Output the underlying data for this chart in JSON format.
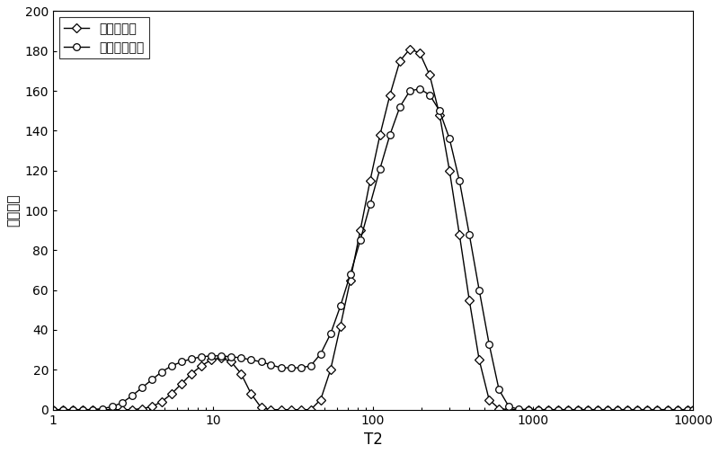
{
  "title": "",
  "xlabel": "T2",
  "ylabel": "信号强度",
  "xlim_log": [
    1,
    10000
  ],
  "ylim": [
    0,
    200
  ],
  "yticks": [
    0,
    20,
    40,
    60,
    80,
    100,
    120,
    140,
    160,
    180,
    200
  ],
  "xticks": [
    1,
    10,
    100,
    1000,
    10000
  ],
  "xtick_labels": [
    "1",
    "10",
    "100",
    "1000",
    "10000"
  ],
  "legend1": "饱和油状态",
  "legend2": "油水共存状态",
  "line_color": "#000000",
  "background_color": "#ffffff",
  "figsize": [
    8.0,
    5.05
  ],
  "dpi": 100,
  "curve1_x": [
    1.0,
    1.15,
    1.33,
    1.53,
    1.77,
    2.04,
    2.35,
    2.71,
    3.13,
    3.6,
    4.15,
    4.79,
    5.52,
    6.37,
    7.34,
    8.46,
    9.77,
    11.3,
    13.0,
    15.0,
    17.3,
    20.0,
    23.0,
    26.6,
    30.7,
    35.4,
    40.8,
    47.1,
    54.3,
    62.6,
    72.2,
    83.3,
    96.0,
    110.7,
    127.7,
    147.3,
    169.9,
    195.9,
    226.0,
    260.7,
    300.7,
    346.7,
    399.8,
    461.0,
    531.6,
    613.0,
    706.9,
    815.3,
    940.2,
    1084.0,
    1250.0,
    1441.0,
    1662.0,
    1916.0,
    2209.0,
    2548.0,
    2938.0,
    3388.0,
    3907.0,
    4505.0,
    5195.0,
    5990.0,
    6909.0,
    7967.0,
    9186.0,
    10000.0
  ],
  "curve1_y": [
    0.0,
    0.0,
    0.0,
    0.0,
    0.0,
    0.0,
    0.0,
    0.0,
    0.0,
    0.5,
    1.5,
    4.0,
    8.0,
    13.0,
    18.0,
    22.0,
    25.0,
    26.0,
    24.0,
    18.0,
    8.0,
    1.0,
    0.0,
    0.0,
    0.0,
    0.0,
    0.0,
    5.0,
    20.0,
    42.0,
    65.0,
    90.0,
    115.0,
    138.0,
    158.0,
    175.0,
    181.0,
    179.0,
    168.0,
    148.0,
    120.0,
    88.0,
    55.0,
    25.0,
    5.0,
    0.5,
    0.0,
    0.0,
    0.0,
    0.0,
    0.0,
    0.0,
    0.0,
    0.0,
    0.0,
    0.0,
    0.0,
    0.0,
    0.0,
    0.0,
    0.0,
    0.0,
    0.0,
    0.0,
    0.0,
    0.0
  ],
  "curve2_x": [
    1.0,
    1.15,
    1.33,
    1.53,
    1.77,
    2.04,
    2.35,
    2.71,
    3.13,
    3.6,
    4.15,
    4.79,
    5.52,
    6.37,
    7.34,
    8.46,
    9.77,
    11.3,
    13.0,
    15.0,
    17.3,
    20.0,
    23.0,
    26.6,
    30.7,
    35.4,
    40.8,
    47.1,
    54.3,
    62.6,
    72.2,
    83.3,
    96.0,
    110.7,
    127.7,
    147.3,
    169.9,
    195.9,
    226.0,
    260.7,
    300.7,
    346.7,
    399.8,
    461.0,
    531.6,
    613.0,
    706.9,
    815.3,
    940.2,
    1084.0,
    1250.0,
    1441.0,
    1662.0,
    1916.0,
    2209.0,
    2548.0,
    2938.0,
    3388.0,
    3907.0,
    4505.0,
    5195.0,
    5990.0,
    6909.0,
    7967.0,
    9186.0,
    10000.0
  ],
  "curve2_y": [
    0.0,
    0.0,
    0.0,
    0.0,
    0.0,
    0.5,
    1.5,
    3.5,
    7.0,
    11.0,
    15.0,
    19.0,
    22.0,
    24.0,
    25.5,
    26.5,
    27.0,
    27.0,
    26.5,
    26.0,
    25.0,
    24.0,
    22.5,
    21.0,
    21.0,
    21.0,
    22.0,
    28.0,
    38.0,
    52.0,
    68.0,
    85.0,
    103.0,
    121.0,
    138.0,
    152.0,
    160.0,
    161.0,
    158.0,
    150.0,
    136.0,
    115.0,
    88.0,
    60.0,
    33.0,
    10.0,
    1.5,
    0.2,
    0.0,
    0.0,
    0.0,
    0.0,
    0.0,
    0.0,
    0.0,
    0.0,
    0.0,
    0.0,
    0.0,
    0.0,
    0.0,
    0.0,
    0.0,
    0.0,
    0.0,
    0.0
  ]
}
